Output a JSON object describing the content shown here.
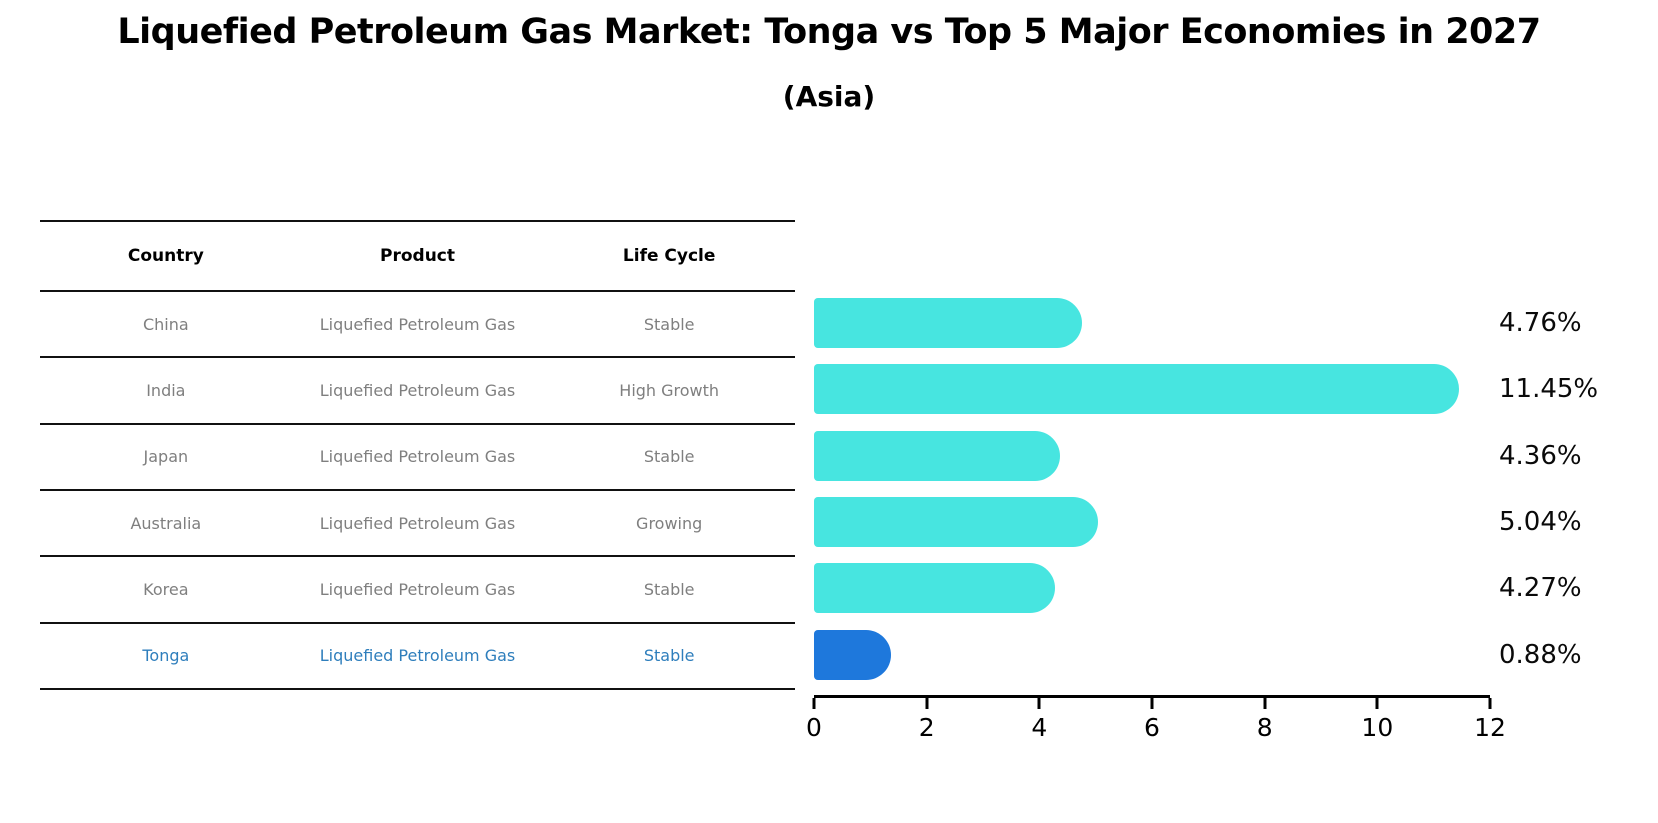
{
  "page": {
    "title": "Liquefied Petroleum Gas Market: Tonga vs Top 5 Major Economies in 2027",
    "subtitle": "(Asia)"
  },
  "table": {
    "headers": [
      "Country",
      "Product",
      "Life Cycle"
    ],
    "rows": [
      {
        "country": "China",
        "product": "Liquefied Petroleum Gas",
        "life_cycle": "Stable",
        "highlight": false
      },
      {
        "country": "India",
        "product": "Liquefied Petroleum Gas",
        "life_cycle": "High Growth",
        "highlight": false
      },
      {
        "country": "Japan",
        "product": "Liquefied Petroleum Gas",
        "life_cycle": "Stable",
        "highlight": false
      },
      {
        "country": "Australia",
        "product": "Liquefied Petroleum Gas",
        "life_cycle": "Growing",
        "highlight": false
      },
      {
        "country": "Korea",
        "product": "Liquefied Petroleum Gas",
        "life_cycle": "Stable",
        "highlight": false
      },
      {
        "country": "Tonga",
        "product": "Liquefied Petroleum Gas",
        "life_cycle": "Stable",
        "highlight": true
      }
    ]
  },
  "chart_data": {
    "type": "bar",
    "orientation": "horizontal",
    "title": "Liquefied Petroleum Gas Market: Tonga vs Top 5 Major Economies in 2027 (Asia)",
    "xlabel": "",
    "ylabel": "",
    "xlim": [
      0,
      12
    ],
    "x_ticks": [
      "0",
      "2",
      "4",
      "6",
      "8",
      "10",
      "12"
    ],
    "grid": false,
    "value_label_position": "right",
    "categories": [
      "China",
      "India",
      "Japan",
      "Australia",
      "Korea",
      "Tonga"
    ],
    "values": [
      4.76,
      11.45,
      4.36,
      5.04,
      4.27,
      0.88
    ],
    "rows": [
      {
        "category": "China",
        "value": 4.76,
        "label": "4.76%",
        "color": "#47e5e0"
      },
      {
        "category": "India",
        "value": 11.45,
        "label": "11.45%",
        "color": "#47e5e0"
      },
      {
        "category": "Japan",
        "value": 4.36,
        "label": "4.36%",
        "color": "#47e5e0"
      },
      {
        "category": "Australia",
        "value": 5.04,
        "label": "5.04%",
        "color": "#47e5e0"
      },
      {
        "category": "Korea",
        "value": 4.27,
        "label": "4.27%",
        "color": "#47e5e0"
      },
      {
        "category": "Tonga",
        "value": 0.88,
        "label": "0.88%",
        "color": "#1e78dc"
      }
    ],
    "colors": {
      "bar_default": "#47e5e0",
      "bar_highlight": "#1e78dc",
      "highlight_text": "#2e7ebc",
      "table_text": "#7f7f7f",
      "axis": "#000000"
    }
  }
}
